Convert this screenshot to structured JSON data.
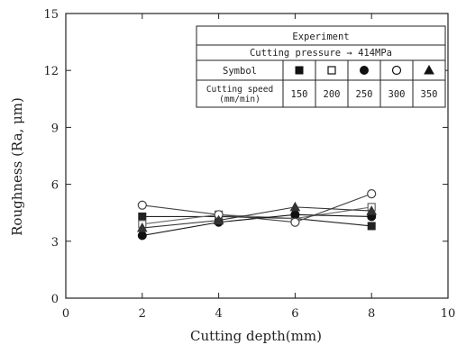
{
  "chart_data": {
    "type": "line",
    "xlabel": "Cutting depth(mm)",
    "ylabel": "Roughness (Ra, μm)",
    "xlim": [
      0,
      10
    ],
    "ylim": [
      0,
      15
    ],
    "xticks": [
      0,
      2,
      4,
      6,
      8,
      10
    ],
    "yticks": [
      0,
      3,
      6,
      9,
      12,
      15
    ],
    "grid": false,
    "x": [
      2,
      4,
      6,
      8
    ],
    "series": [
      {
        "speed": "150",
        "marker": "filled-square",
        "color": "#222222",
        "values": [
          4.3,
          4.3,
          4.2,
          3.8
        ]
      },
      {
        "speed": "200",
        "marker": "open-square",
        "color": "#666666",
        "values": [
          3.9,
          4.4,
          4.2,
          4.8
        ]
      },
      {
        "speed": "250",
        "marker": "filled-circle",
        "color": "#111111",
        "values": [
          3.3,
          4.0,
          4.4,
          4.3
        ]
      },
      {
        "speed": "300",
        "marker": "open-circle",
        "color": "#444444",
        "values": [
          4.9,
          4.4,
          4.0,
          5.5
        ]
      },
      {
        "speed": "350",
        "marker": "filled-triangle",
        "color": "#333333",
        "values": [
          3.7,
          4.1,
          4.8,
          4.6
        ]
      }
    ],
    "legend": {
      "placement": "top-right",
      "title": "Experiment",
      "condition": "Cutting pressure → 414MPa",
      "symbol_label": "Symbol",
      "speed_label_line1": "Cutting speed",
      "speed_label_line2": "(mm/min)"
    }
  }
}
